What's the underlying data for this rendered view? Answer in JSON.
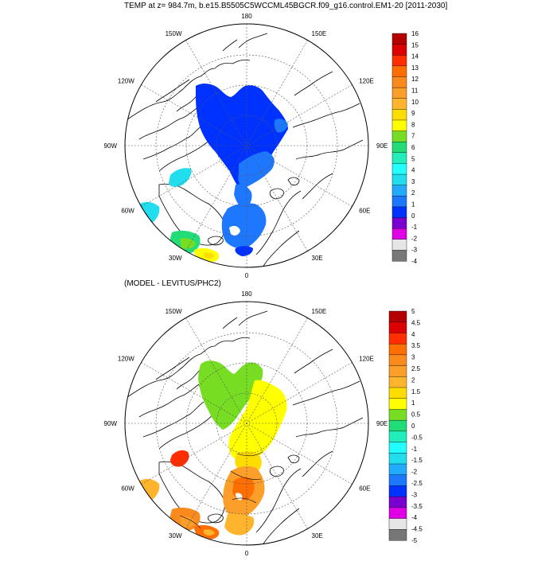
{
  "titles": {
    "main": "TEMP at z= 984.7m, b.e15.B5505C5WCCML45BGCR.f09_g16.control.EM1-20 [2011-2030]",
    "sub": "(MODEL - LEVITUS/PHC2)"
  },
  "longitude_labels": [
    "180",
    "150E",
    "120E",
    "90E",
    "60E",
    "30E",
    "0",
    "30W",
    "60W",
    "90W",
    "120W",
    "150W"
  ],
  "colorbars": {
    "top": {
      "labels": [
        "16",
        "15",
        "14",
        "13",
        "12",
        "11",
        "10",
        "9",
        "8",
        "7",
        "6",
        "5",
        "4",
        "3",
        "2",
        "1",
        "0",
        "-1",
        "-2",
        "-3",
        "-4"
      ],
      "colors": [
        "#b40000",
        "#dc0000",
        "#ff2d00",
        "#ff6e00",
        "#f98a1e",
        "#fb9e2a",
        "#ffb42e",
        "#fddc00",
        "#ffff00",
        "#77dd22",
        "#22dd77",
        "#22eebb",
        "#22ffff",
        "#22ddee",
        "#22aaff",
        "#1e78ff",
        "#0032ff",
        "#7a00d2",
        "#e000e6",
        "#e6e6e6",
        "#777777"
      ]
    },
    "bottom": {
      "labels": [
        "5",
        "4.5",
        "4",
        "3.5",
        "3",
        "2.5",
        "2",
        "1.5",
        "1",
        "0.5",
        "0",
        "-0.5",
        "-1",
        "-1.5",
        "-2",
        "-2.5",
        "-3",
        "-3.5",
        "-4",
        "-4.5",
        "-5"
      ],
      "colors": [
        "#b40000",
        "#dc0000",
        "#ff2d00",
        "#ff6e00",
        "#f98a1e",
        "#fb9e2a",
        "#ffb42e",
        "#fddc00",
        "#ffff00",
        "#77dd22",
        "#22dd77",
        "#22eebb",
        "#22ffff",
        "#22ddee",
        "#22aaff",
        "#1e78ff",
        "#0032ff",
        "#7a00d2",
        "#e000e6",
        "#e6e6e6",
        "#777777"
      ]
    }
  }
}
